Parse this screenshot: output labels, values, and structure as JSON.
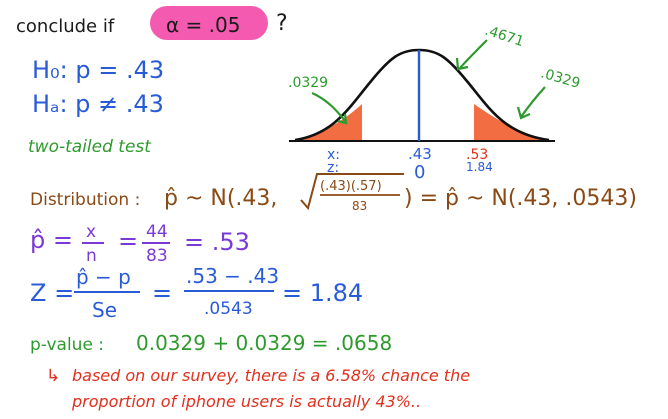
{
  "header": {
    "conclude_text": "conclude if",
    "alpha_text": "α = .05",
    "question_mark": "?",
    "highlight_color": "#f45bb0"
  },
  "hypotheses": {
    "h0": "H₀: p = .43",
    "ha": "Hₐ: p ≠ .43"
  },
  "test_type": "two-tailed test",
  "diagram": {
    "left_tail_area": ".0329",
    "right_tail_area": ".0329",
    "center_area": ".4671",
    "axis_x_label": "x:",
    "axis_z_label": "z:",
    "center_x_value": ".43",
    "center_z_value": "0",
    "right_x_value": ".53",
    "right_z_value": "1.84",
    "curve_color": "#111111",
    "tail_color": "#f05a28",
    "center_line_color": "#2a5bd7",
    "arrow_color": "#2e9a2e"
  },
  "distribution": {
    "label": "Distribution :",
    "formula_start": "p̂ ~ N(.43,",
    "sqrt_numerator": "(.43)(.57)",
    "sqrt_denominator": "83",
    "formula_end": ") = p̂ ~ N(.43, .0543)"
  },
  "p_hat": {
    "lhs": "p̂ =",
    "frac1_num": "x",
    "frac1_den": "n",
    "eq1": "=",
    "frac2_num": "44",
    "frac2_den": "83",
    "result": "= .53"
  },
  "z_score": {
    "lhs": "Z =",
    "frac1_num": "p̂ − p",
    "frac1_den": "Se",
    "eq1": "=",
    "frac2_num": ".53 − .43",
    "frac2_den": ".0543",
    "result": "= 1.84"
  },
  "p_value": {
    "label": "p-value :",
    "value": "0.0329 + 0.0329 = .0658"
  },
  "conclusion": {
    "arrow": "↳",
    "line1": "based on our survey, there is a 6.58% chance the",
    "line2": "proportion of iphone users is actually 43%.."
  }
}
